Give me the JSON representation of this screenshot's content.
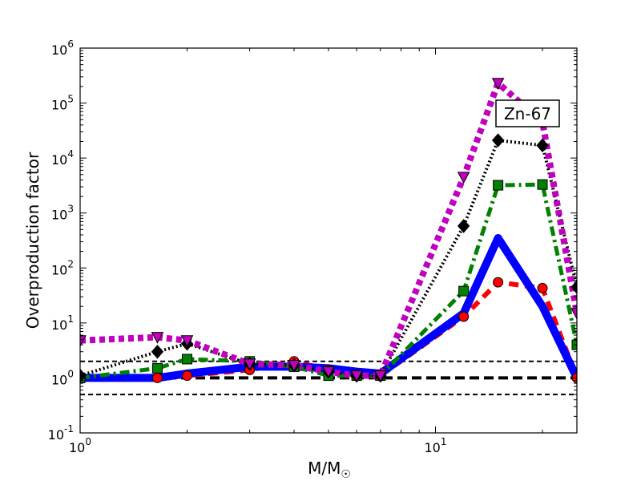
{
  "chart_data": {
    "type": "line",
    "title": "",
    "xlabel": "M/M",
    "xlabel_sub": "☉",
    "ylabel": "Overproduction factor",
    "xscale": "log",
    "yscale": "log",
    "xlim": [
      1,
      25
    ],
    "ylim": [
      0.1,
      1000000
    ],
    "x_ticks": [
      {
        "value": 1,
        "base": "10",
        "exp": "0"
      },
      {
        "value": 10,
        "base": "10",
        "exp": "1"
      }
    ],
    "y_ticks": [
      {
        "value": 0.1,
        "base": "10",
        "exp": "-1"
      },
      {
        "value": 1,
        "base": "10",
        "exp": "0"
      },
      {
        "value": 10,
        "base": "10",
        "exp": "1"
      },
      {
        "value": 100,
        "base": "10",
        "exp": "2"
      },
      {
        "value": 1000,
        "base": "10",
        "exp": "3"
      },
      {
        "value": 10000,
        "base": "10",
        "exp": "4"
      },
      {
        "value": 100000,
        "base": "10",
        "exp": "5"
      },
      {
        "value": 1000000,
        "base": "10",
        "exp": "6"
      }
    ],
    "annotation": "Zn-67",
    "reference_lines": [
      {
        "y": 2.0,
        "style": "dashed",
        "color": "#000000",
        "width": 2
      },
      {
        "y": 1.0,
        "style": "dashed",
        "color": "#000000",
        "width": 4
      },
      {
        "y": 0.5,
        "style": "dashed",
        "color": "#000000",
        "width": 2
      }
    ],
    "series": [
      {
        "color": "#ff0000",
        "style": "dashed",
        "width": 6,
        "marker": "circle",
        "x": [
          1,
          1.65,
          2,
          3,
          4,
          5,
          6,
          7,
          12,
          15,
          20,
          25
        ],
        "y": [
          1.0,
          1.0,
          1.1,
          1.4,
          2.0,
          1.4,
          1.1,
          1.1,
          13,
          55,
          43,
          1.0
        ]
      },
      {
        "color": "#0000ff",
        "style": "solid",
        "width": 10,
        "marker": "none",
        "x": [
          1,
          1.65,
          2,
          3,
          4,
          5,
          6,
          7,
          12,
          15,
          20,
          25
        ],
        "y": [
          1.0,
          1.0,
          1.2,
          1.6,
          1.6,
          1.5,
          1.3,
          1.2,
          15,
          350,
          20,
          1.0
        ]
      },
      {
        "color": "#008000",
        "style": "dashdot",
        "width": 5,
        "marker": "square",
        "x": [
          1,
          1.65,
          2,
          3,
          4,
          5,
          6,
          7,
          12,
          15,
          20,
          25
        ],
        "y": [
          1.0,
          1.5,
          2.2,
          2.0,
          1.6,
          1.1,
          1.1,
          1.1,
          38,
          3200,
          3300,
          4.0
        ]
      },
      {
        "color": "#000000",
        "style": "dotted",
        "width": 4,
        "marker": "diamond",
        "x": [
          1,
          1.65,
          2,
          3,
          4,
          5,
          6,
          7,
          12,
          15,
          20,
          25
        ],
        "y": [
          1.1,
          3.0,
          4.2,
          1.8,
          1.7,
          1.3,
          1.1,
          1.1,
          580,
          21000,
          17000,
          45
        ]
      },
      {
        "color": "#bf00bf",
        "style": "dotted",
        "width": 8,
        "marker": "triangle-down",
        "x": [
          1,
          1.65,
          2,
          3,
          4,
          5,
          6,
          7,
          12,
          15,
          20,
          25
        ],
        "y": [
          4.8,
          5.5,
          4.8,
          1.8,
          1.7,
          1.3,
          1.1,
          1.1,
          4500,
          230000,
          45000,
          15
        ]
      }
    ]
  }
}
